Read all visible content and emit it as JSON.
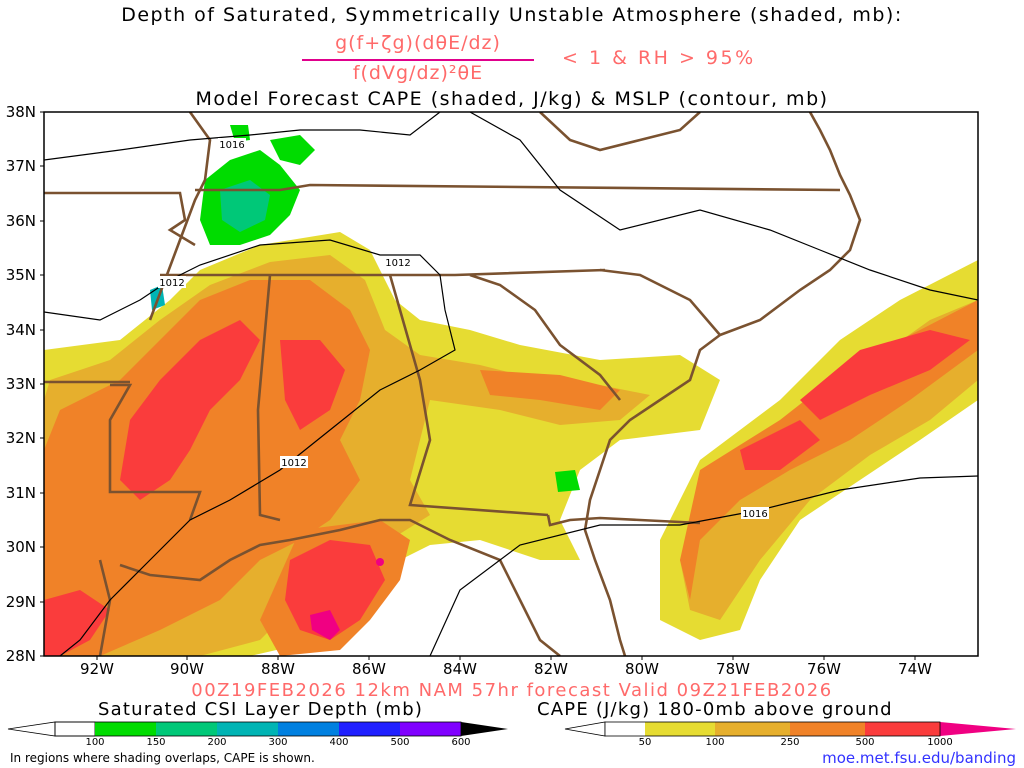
{
  "title": {
    "line1": "Depth of Saturated, Symmetrically Unstable Atmosphere (shaded, mb):",
    "numerator": "g(f+ζg)(dθE/dz)",
    "denominator": "f(dVg/dz)²θE",
    "condition": "< 1 & RH > 95%",
    "line3": "Model Forecast CAPE (shaded, J/kg) & MSLP (contour, mb)"
  },
  "axes": {
    "lat_labels": [
      "38N",
      "37N",
      "36N",
      "35N",
      "34N",
      "33N",
      "32N",
      "31N",
      "30N",
      "29N",
      "28N"
    ],
    "lon_labels": [
      "92W",
      "90W",
      "88W",
      "86W",
      "84W",
      "82W",
      "80W",
      "78W",
      "76W",
      "74W"
    ],
    "lat_range": [
      28,
      38
    ],
    "lon_range": [
      -93,
      -73
    ]
  },
  "isobars": {
    "labels": [
      "1016",
      "1012",
      "1012",
      "1012",
      "1016"
    ],
    "color": "#000000"
  },
  "valid_line": "00Z19FEB2026 12km NAM 57hr forecast Valid 09Z21FEB2026",
  "csi_colorbar": {
    "title": "Saturated CSI Layer Depth (mb)",
    "ticks": [
      "100",
      "150",
      "200",
      "300",
      "400",
      "500",
      "600"
    ],
    "colors": [
      "#00dc00",
      "#00c878",
      "#00b4b4",
      "#0080e0",
      "#2020ff",
      "#8000ff",
      "#000000"
    ]
  },
  "cape_colorbar": {
    "title": "CAPE (J/kg) 180-0mb above ground",
    "ticks": [
      "50",
      "100",
      "250",
      "500",
      "1000"
    ],
    "colors": [
      "#e6dc32",
      "#e6af2d",
      "#f08228",
      "#fa3c3c",
      "#f00082"
    ]
  },
  "footer": {
    "note": "In regions where shading overlaps, CAPE is shown.",
    "url": "moe.met.fsu.edu/banding"
  },
  "colors": {
    "borders": "#7a5230",
    "title_accent": "#ff6a6a",
    "fraction_bar": "#e0008c",
    "url": "#3232ff"
  }
}
